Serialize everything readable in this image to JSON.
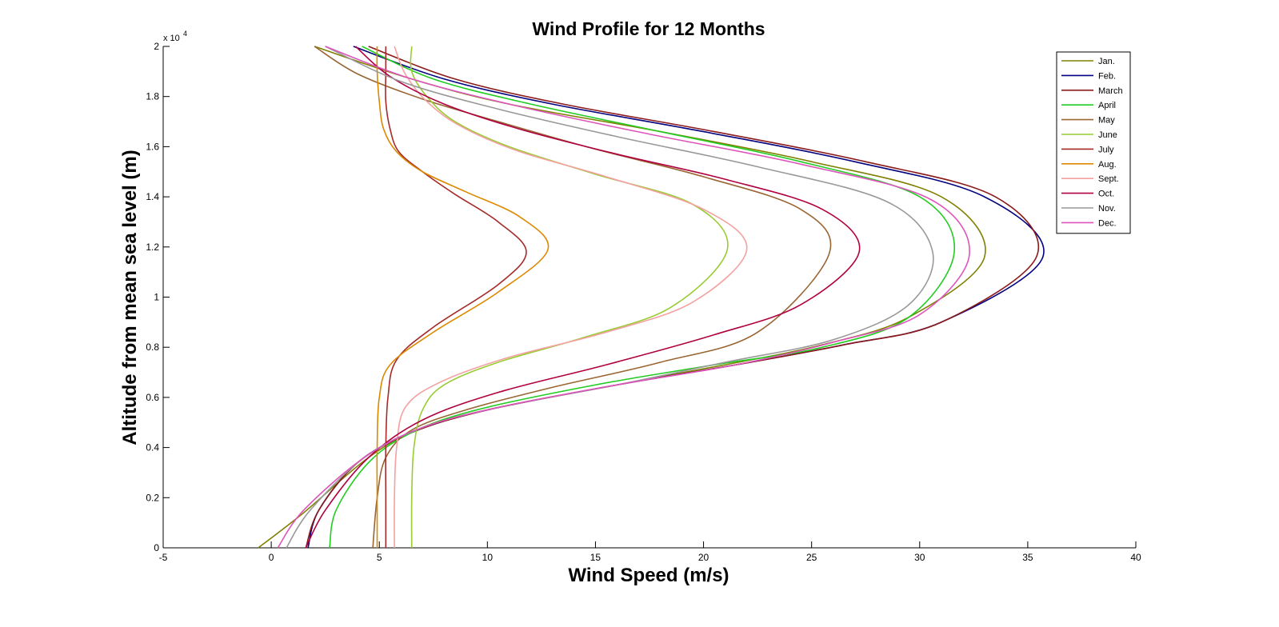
{
  "chart_data": {
    "type": "line",
    "title": "Wind Profile for 12 Months",
    "xlabel": "Wind Speed (m/s)",
    "ylabel": "Altitude from mean sea level (m)",
    "xlim": [
      -5,
      40
    ],
    "ylim": [
      0,
      20000
    ],
    "x_ticks": [
      -5,
      0,
      5,
      10,
      15,
      20,
      25,
      30,
      35,
      40
    ],
    "x_tick_labels": [
      "-5",
      "0",
      "5",
      "10",
      "15",
      "20",
      "25",
      "30",
      "35",
      "40"
    ],
    "y_ticks": [
      0,
      2000,
      4000,
      6000,
      8000,
      10000,
      12000,
      14000,
      16000,
      18000,
      20000
    ],
    "y_tick_labels": [
      "0",
      "0.2",
      "0.4",
      "0.6",
      "0.8",
      "1",
      "1.2",
      "1.4",
      "1.6",
      "1.8",
      "2"
    ],
    "y_exponent_label": "x 10",
    "y_exponent_power": "4",
    "grid": false,
    "legend_position": "top-right",
    "series": [
      {
        "name": "Jan.",
        "color": "#808000",
        "x": [
          -0.6,
          1.5,
          4.5,
          7.0,
          10.5,
          16.0,
          21.0,
          25.5,
          29.5,
          33.0,
          31.0,
          25.0,
          18.0,
          11.0,
          6.5,
          2.0
        ],
        "y": [
          0,
          1400,
          3600,
          4800,
          5600,
          6500,
          7300,
          8100,
          9200,
          11600,
          14000,
          15400,
          16600,
          17700,
          18700,
          20000
        ]
      },
      {
        "name": "Feb.",
        "color": "#000080",
        "x": [
          1.7,
          2.2,
          4.0,
          6.5,
          10.0,
          16.0,
          21.5,
          26.5,
          31.0,
          35.7,
          33.0,
          27.0,
          20.0,
          13.0,
          8.0,
          3.8
        ],
        "y": [
          0,
          1500,
          3400,
          4600,
          5500,
          6500,
          7300,
          8100,
          9000,
          11600,
          14000,
          15400,
          16600,
          17700,
          18700,
          20000
        ]
      },
      {
        "name": "March",
        "color": "#8b1a1a",
        "x": [
          1.6,
          2.2,
          4.0,
          6.5,
          10.0,
          16.0,
          21.5,
          26.5,
          31.0,
          35.4,
          33.5,
          27.5,
          20.5,
          13.5,
          8.5,
          4.5
        ],
        "y": [
          0,
          1500,
          3400,
          4600,
          5500,
          6500,
          7300,
          8100,
          9000,
          11600,
          14000,
          15400,
          16600,
          17700,
          18700,
          20000
        ]
      },
      {
        "name": "April",
        "color": "#22cc22",
        "x": [
          2.7,
          3.0,
          4.5,
          6.5,
          9.5,
          15.0,
          20.5,
          25.5,
          29.5,
          31.6,
          30.0,
          24.5,
          18.0,
          12.0,
          7.5,
          4.2
        ],
        "y": [
          0,
          1500,
          3400,
          4600,
          5500,
          6500,
          7300,
          8000,
          9200,
          11800,
          14000,
          15400,
          16600,
          17700,
          18700,
          20000
        ]
      },
      {
        "name": "May",
        "color": "#996633",
        "x": [
          4.7,
          4.9,
          5.3,
          6.5,
          9.0,
          13.0,
          18.0,
          22.5,
          25.8,
          24.5,
          20.0,
          15.0,
          10.5,
          7.0,
          4.0,
          2.0
        ],
        "y": [
          0,
          2000,
          3600,
          4700,
          5500,
          6400,
          7400,
          8600,
          11700,
          13500,
          14800,
          15900,
          17000,
          17900,
          18900,
          20000
        ]
      },
      {
        "name": "June",
        "color": "#99cc33",
        "x": [
          6.5,
          6.5,
          6.6,
          7.0,
          8.0,
          10.5,
          14.5,
          18.5,
          21.1,
          19.5,
          15.0,
          11.0,
          8.5,
          7.2,
          6.5,
          6.5
        ],
        "y": [
          0,
          2000,
          4000,
          5500,
          6500,
          7400,
          8400,
          9600,
          11900,
          13700,
          14900,
          16000,
          17000,
          18000,
          19000,
          20000
        ]
      },
      {
        "name": "July",
        "color": "#a52a2a",
        "x": [
          5.3,
          5.3,
          5.3,
          5.4,
          5.8,
          7.5,
          10.5,
          11.8,
          10.5,
          8.5,
          7.0,
          5.9,
          5.5,
          5.3,
          5.3,
          5.3
        ],
        "y": [
          0,
          2000,
          4000,
          6000,
          7500,
          8800,
          10500,
          11800,
          13000,
          14100,
          15000,
          15800,
          16700,
          17800,
          19000,
          20000
        ]
      },
      {
        "name": "Aug.",
        "color": "#dd8800",
        "x": [
          4.9,
          4.9,
          4.9,
          5.0,
          5.5,
          7.5,
          10.5,
          12.8,
          11.5,
          9.0,
          7.0,
          5.8,
          5.2,
          5.0,
          4.9,
          4.9
        ],
        "y": [
          0,
          2000,
          4000,
          6000,
          7300,
          8600,
          10200,
          11900,
          13200,
          14200,
          15000,
          15800,
          16700,
          17800,
          19000,
          20000
        ]
      },
      {
        "name": "Sept.",
        "color": "#f4a0a0",
        "x": [
          5.7,
          5.7,
          5.8,
          6.2,
          7.8,
          11.0,
          15.5,
          19.5,
          22.0,
          20.0,
          15.5,
          11.5,
          8.8,
          7.2,
          6.2,
          5.7
        ],
        "y": [
          0,
          2000,
          4000,
          5600,
          6600,
          7600,
          8600,
          9800,
          11900,
          13500,
          14800,
          15800,
          16800,
          17800,
          18900,
          20000
        ]
      },
      {
        "name": "Oct.",
        "color": "#b00040",
        "x": [
          1.6,
          2.5,
          4.5,
          7.0,
          10.5,
          15.5,
          20.5,
          24.5,
          27.2,
          25.5,
          21.0,
          16.0,
          11.5,
          8.0,
          5.5,
          3.9
        ],
        "y": [
          0,
          1500,
          3600,
          5100,
          6200,
          7300,
          8500,
          9700,
          11800,
          13500,
          14700,
          15700,
          16700,
          17700,
          18800,
          20000
        ]
      },
      {
        "name": "Nov.",
        "color": "#999999",
        "x": [
          0.7,
          1.8,
          4.3,
          7.0,
          10.5,
          16.0,
          21.0,
          26.0,
          29.5,
          30.6,
          28.5,
          22.5,
          16.0,
          10.5,
          6.0,
          2.5
        ],
        "y": [
          0,
          1500,
          3600,
          4800,
          5600,
          6500,
          7400,
          8300,
          9700,
          11800,
          13800,
          15200,
          16400,
          17500,
          18600,
          20000
        ]
      },
      {
        "name": "Dec.",
        "color": "#dd55bb",
        "x": [
          0.3,
          1.5,
          4.3,
          7.0,
          10.5,
          16.0,
          21.5,
          26.0,
          30.0,
          32.3,
          30.5,
          24.5,
          17.5,
          11.5,
          6.5,
          2.5
        ],
        "y": [
          0,
          1500,
          3600,
          4800,
          5600,
          6500,
          7300,
          8200,
          9300,
          11700,
          13900,
          15300,
          16500,
          17600,
          18700,
          20000
        ]
      }
    ]
  }
}
